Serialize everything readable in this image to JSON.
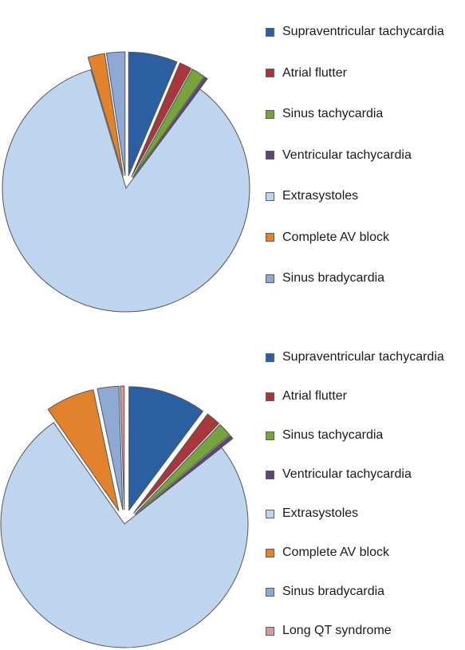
{
  "colors": {
    "Supraventricular tachycardia": "#2c5fa1",
    "Atrial flutter": "#a8363a",
    "Sinus tachycardia": "#77a23d",
    "Ventricular tachycardia": "#5f437e",
    "Extrasystoles": "#bfd4ee",
    "Complete AV block": "#e2822c",
    "Sinus bradycardia": "#8ea9d4",
    "Long QT syndrome": "#d99899",
    "outline": "#555555"
  },
  "chart_data": [
    {
      "type": "pie",
      "exploded": true,
      "legend_position": "right",
      "categories": [
        "Supraventricular tachycardia",
        "Atrial flutter",
        "Sinus tachycardia",
        "Ventricular tachycardia",
        "Extrasystoles",
        "Complete AV block",
        "Sinus bradycardia"
      ],
      "values": [
        6.4,
        1.6,
        1.8,
        0.4,
        85.2,
        2.2,
        2.4
      ],
      "legend": [
        "Supraventricular tachycardia",
        "Atrial flutter",
        "Sinus tachycardia",
        "Ventricular tachycardia",
        "Extrasystoles",
        "Complete AV block",
        "Sinus bradycardia"
      ]
    },
    {
      "type": "pie",
      "exploded": true,
      "legend_position": "right",
      "categories": [
        "Supraventricular tachycardia",
        "Atrial flutter",
        "Sinus tachycardia",
        "Ventricular tachycardia",
        "Extrasystoles",
        "Complete AV block",
        "Sinus bradycardia",
        "Long QT syndrome"
      ],
      "values": [
        10.2,
        1.9,
        1.8,
        0.5,
        75.9,
        6.4,
        2.8,
        0.5
      ],
      "legend": [
        "Supraventricular tachycardia",
        "Atrial flutter",
        "Sinus tachycardia",
        "Ventricular tachycardia",
        "Extrasystoles",
        "Complete AV block",
        "Sinus bradycardia",
        "Long QT syndrome"
      ]
    }
  ]
}
